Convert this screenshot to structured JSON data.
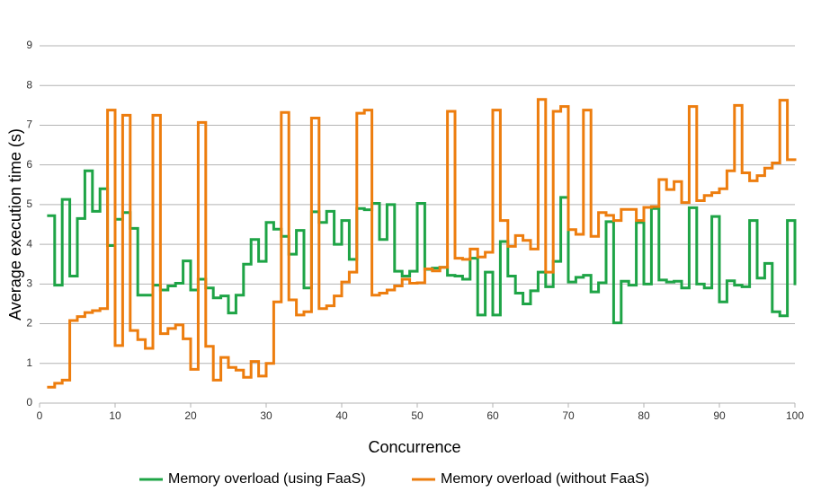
{
  "chart_data": {
    "type": "step",
    "xlabel": "Concurrence",
    "ylabel": "Average execution time (s)",
    "x": [
      1,
      2,
      3,
      4,
      5,
      6,
      7,
      8,
      9,
      10,
      11,
      12,
      13,
      14,
      15,
      16,
      17,
      18,
      19,
      20,
      21,
      22,
      23,
      24,
      25,
      26,
      27,
      28,
      29,
      30,
      31,
      32,
      33,
      34,
      35,
      36,
      37,
      38,
      39,
      40,
      41,
      42,
      43,
      44,
      45,
      46,
      47,
      48,
      49,
      50,
      51,
      52,
      53,
      54,
      55,
      56,
      57,
      58,
      59,
      60,
      61,
      62,
      63,
      64,
      65,
      66,
      67,
      68,
      69,
      70,
      71,
      72,
      73,
      74,
      75,
      76,
      77,
      78,
      79,
      80,
      81,
      82,
      83,
      84,
      85,
      86,
      87,
      88,
      89,
      90,
      91,
      92,
      93,
      94,
      95,
      96,
      97,
      98,
      99,
      100
    ],
    "series": [
      {
        "name": "Memory overload (using FaaS)",
        "color": "#1ea446",
        "values": [
          4.72,
          2.97,
          5.13,
          3.2,
          4.65,
          5.85,
          4.83,
          5.4,
          3.97,
          4.63,
          4.8,
          4.4,
          2.72,
          2.72,
          2.97,
          2.85,
          2.95,
          3.02,
          3.58,
          2.85,
          3.12,
          2.9,
          2.65,
          2.7,
          2.27,
          2.72,
          3.5,
          4.12,
          3.57,
          4.55,
          4.38,
          4.2,
          3.75,
          4.35,
          2.9,
          4.82,
          4.55,
          4.83,
          4.0,
          4.6,
          3.62,
          4.9,
          4.87,
          5.03,
          4.12,
          5.0,
          3.32,
          3.2,
          3.32,
          5.03,
          3.37,
          3.4,
          3.42,
          3.22,
          3.2,
          3.12,
          3.65,
          2.22,
          3.3,
          2.22,
          4.07,
          3.2,
          2.77,
          2.5,
          2.83,
          3.3,
          2.93,
          3.57,
          5.18,
          3.05,
          3.17,
          3.22,
          2.8,
          3.03,
          4.57,
          2.02,
          3.07,
          2.97,
          4.55,
          3.0,
          4.9,
          3.1,
          3.05,
          3.07,
          2.9,
          4.92,
          3.0,
          2.9,
          4.7,
          2.55,
          3.08,
          2.97,
          2.93,
          4.6,
          3.15,
          3.52,
          2.3,
          2.2,
          4.6,
          2.97
        ]
      },
      {
        "name": "Memory overload (without FaaS)",
        "color": "#ed7d0e",
        "values": [
          0.4,
          0.5,
          0.58,
          2.08,
          2.18,
          2.28,
          2.33,
          2.38,
          7.38,
          1.45,
          7.25,
          1.83,
          1.6,
          1.38,
          7.25,
          1.75,
          1.88,
          1.97,
          1.62,
          0.85,
          7.07,
          1.43,
          0.58,
          1.15,
          0.9,
          0.83,
          0.65,
          1.05,
          0.68,
          1.0,
          2.55,
          7.32,
          2.6,
          2.22,
          2.3,
          7.18,
          2.38,
          2.45,
          2.7,
          3.05,
          3.3,
          7.3,
          7.38,
          2.72,
          2.77,
          2.85,
          2.95,
          3.12,
          3.02,
          3.03,
          3.38,
          3.33,
          3.42,
          7.35,
          3.65,
          3.62,
          3.88,
          3.68,
          3.8,
          7.38,
          4.6,
          3.95,
          4.22,
          4.1,
          3.88,
          7.65,
          3.3,
          7.35,
          7.47,
          4.37,
          4.25,
          7.38,
          4.2,
          4.8,
          4.73,
          4.6,
          4.88,
          4.88,
          4.6,
          4.93,
          4.95,
          5.63,
          5.38,
          5.58,
          5.05,
          7.47,
          5.1,
          5.23,
          5.3,
          5.4,
          5.85,
          7.5,
          5.8,
          5.6,
          5.73,
          5.92,
          6.05,
          7.63,
          6.13,
          6.1
        ]
      }
    ],
    "xlim": [
      0,
      100
    ],
    "xticks": [
      0,
      10,
      20,
      30,
      40,
      50,
      60,
      70,
      80,
      90,
      100
    ],
    "ylim": [
      0,
      9
    ],
    "yticks": [
      0,
      1,
      2,
      3,
      4,
      5,
      6,
      7,
      8,
      9
    ],
    "grid": true,
    "legend": "bottom"
  }
}
